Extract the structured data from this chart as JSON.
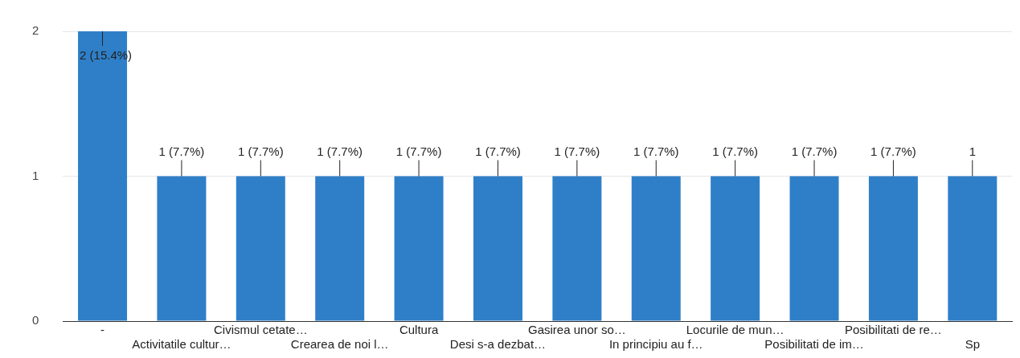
{
  "chart_data": {
    "type": "bar",
    "categories": [
      "-",
      "Activitatile cultur…",
      "Civismul cetate…",
      "Crearea de noi l…",
      "Cultura",
      "Desi s-a dezbat…",
      "Gasirea unor so…",
      "In principiu au f…",
      "Locurile de mun…",
      "Posibilitati de im…",
      "Posibilitati de re…",
      "Sp"
    ],
    "values": [
      2,
      1,
      1,
      1,
      1,
      1,
      1,
      1,
      1,
      1,
      1,
      1
    ],
    "value_labels": [
      "2 (15.4%)",
      "1 (7.7%)",
      "1 (7.7%)",
      "1 (7.7%)",
      "1 (7.7%)",
      "1 (7.7%)",
      "1 (7.7%)",
      "1 (7.7%)",
      "1 (7.7%)",
      "1 (7.7%)",
      "1 (7.7%)",
      "1"
    ],
    "color": "#2f7fc8",
    "ylim": [
      0,
      2
    ],
    "yticks": [
      0,
      1,
      2
    ],
    "grid": "y"
  }
}
